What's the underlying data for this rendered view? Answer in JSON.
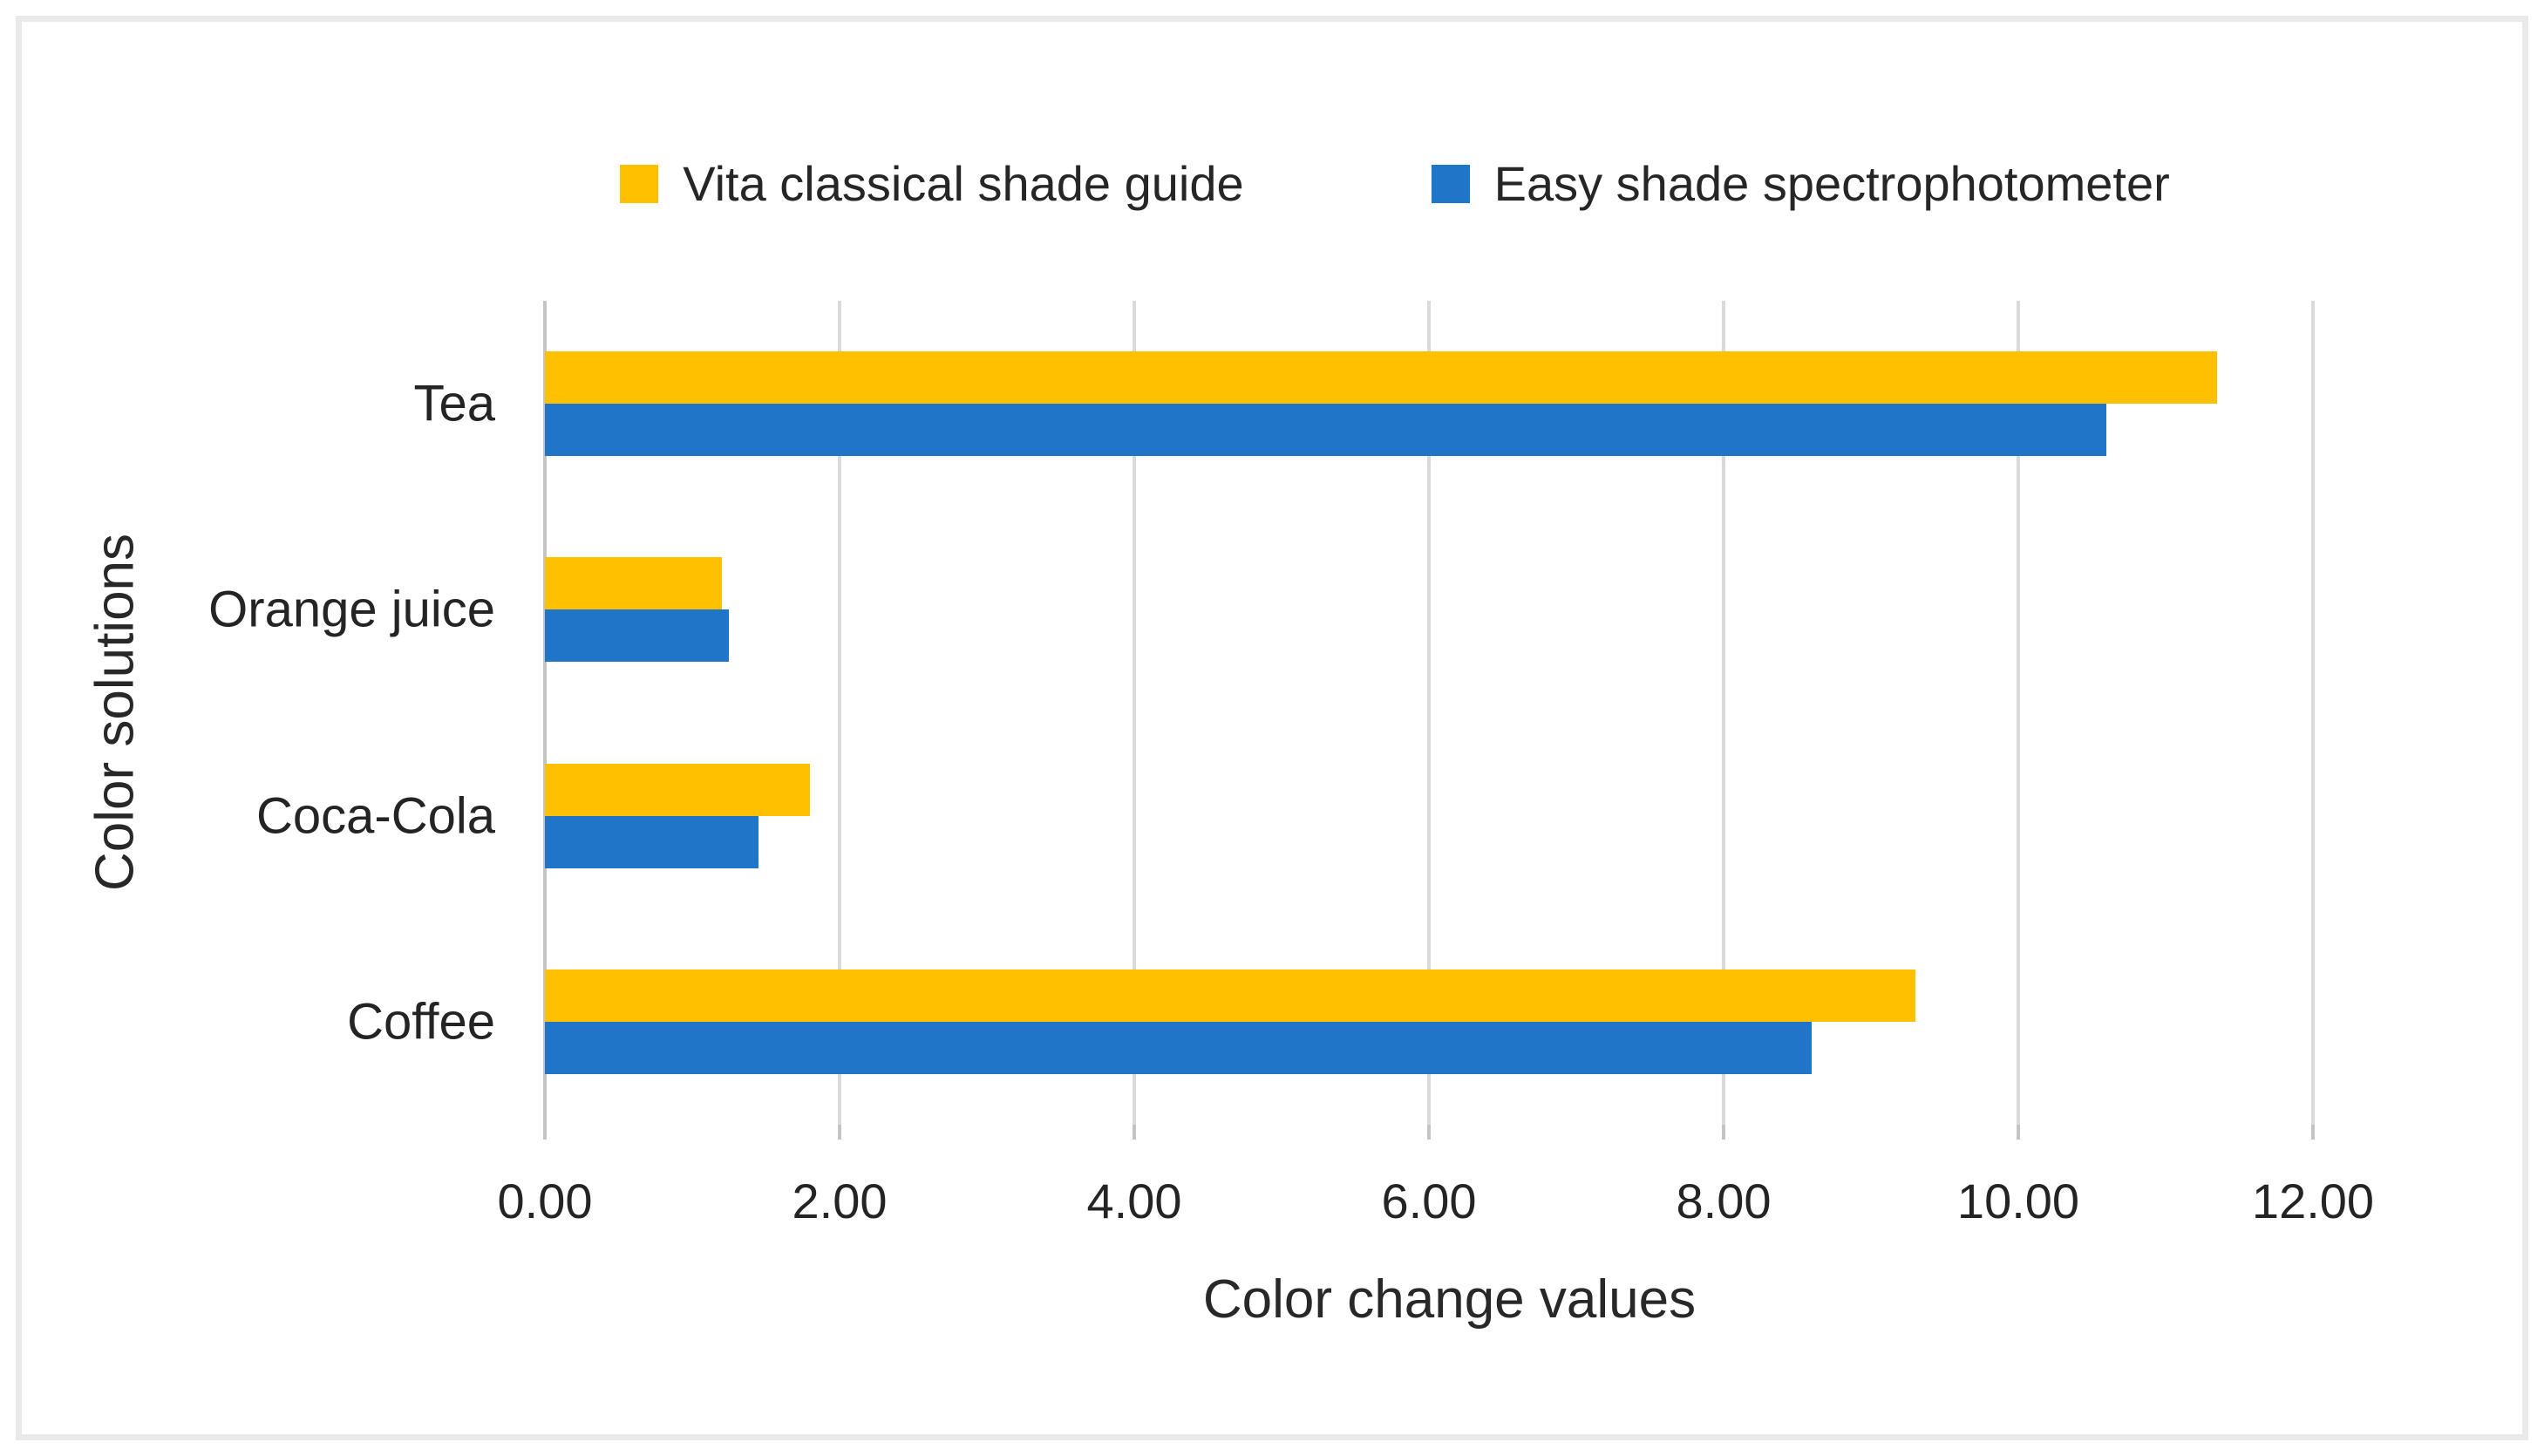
{
  "figure": {
    "background_color": "#ffffff",
    "border_color": "#e9e9e9",
    "text_color": "#262626",
    "gridline_color": "#dadada"
  },
  "chart_data": {
    "type": "bar",
    "orientation": "horizontal",
    "title": "",
    "categories": [
      "Tea",
      "Orange juice",
      "Coca-Cola",
      "Coffee"
    ],
    "series": [
      {
        "name": "Vita classical shade guide",
        "color": "#FFC000",
        "values": [
          11.35,
          1.2,
          1.8,
          9.3
        ]
      },
      {
        "name": "Easy shade spectrophotometer",
        "color": "#1F75C8",
        "values": [
          10.6,
          1.25,
          1.45,
          8.6
        ]
      }
    ],
    "xlabel": "Color change values",
    "ylabel": "Color solutions",
    "xlim": [
      0,
      12
    ],
    "x_tick_step": 2,
    "x_tick_labels": [
      "0.00",
      "2.00",
      "4.00",
      "6.00",
      "8.00",
      "10.00",
      "12.00"
    ],
    "grid": true,
    "legend_position": "top"
  }
}
